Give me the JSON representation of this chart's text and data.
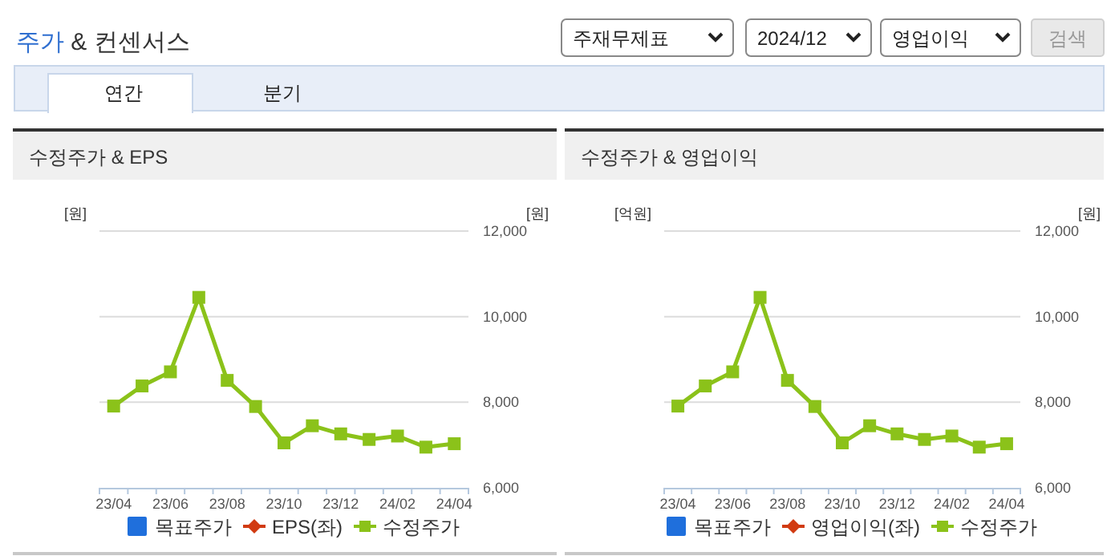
{
  "chart_data": [
    {
      "type": "line",
      "title": "수정주가 & EPS",
      "ylabel": "[원]",
      "y2label": "[원]",
      "annotations": [
        "주가 & 컨센서스",
        "주재무제표",
        "2024/12",
        "영업이익",
        "검색",
        "연간",
        "분기"
      ],
      "categories": [
        "23/04",
        null,
        "23/06",
        null,
        "23/08",
        null,
        "23/10",
        null,
        "23/12",
        null,
        "24/02",
        null,
        "24/04"
      ],
      "series": [
        {
          "name": "목표주가",
          "type": "bar",
          "color": "#1f6fdc",
          "values": [
            null,
            null,
            null,
            null,
            null,
            null,
            null,
            null,
            null,
            null,
            null,
            null,
            null
          ]
        },
        {
          "name": "EPS(좌)",
          "marker": "diamond",
          "color": "#d13b12",
          "values": [
            null,
            null,
            null,
            null,
            null,
            null,
            null,
            null,
            null,
            null,
            null,
            null,
            null
          ]
        },
        {
          "name": "수정주가",
          "axis": "y2",
          "color": "#8bc21a",
          "values": [
            7910,
            8380,
            8710,
            10450,
            8510,
            7900,
            7050,
            7450,
            7260,
            7130,
            7210,
            6950,
            7030
          ]
        }
      ],
      "y2lim": [
        6000,
        12000
      ],
      "y2ticks": [
        {
          "value": 6000,
          "label": "6,000"
        },
        {
          "value": 8000,
          "label": "8,000"
        },
        {
          "value": 10000,
          "label": "10,000"
        },
        {
          "value": 12000,
          "label": "12,000"
        }
      ],
      "grid": "y",
      "legend": "bottom",
      "marker": "square",
      "line_style": "solid"
    },
    {
      "type": "line",
      "title": "수정주가 & 영업이익",
      "ylabel": "[억원]",
      "y2label": "[원]",
      "categories": [
        "23/04",
        null,
        "23/06",
        null,
        "23/08",
        null,
        "23/10",
        null,
        "23/12",
        null,
        "24/02",
        null,
        "24/04"
      ],
      "series": [
        {
          "name": "목표주가",
          "type": "bar",
          "color": "#1f6fdc",
          "values": [
            null,
            null,
            null,
            null,
            null,
            null,
            null,
            null,
            null,
            null,
            null,
            null,
            null
          ]
        },
        {
          "name": "영업이익(좌)",
          "marker": "diamond",
          "color": "#d13b12",
          "values": [
            null,
            null,
            null,
            null,
            null,
            null,
            null,
            null,
            null,
            null,
            null,
            null,
            null
          ]
        },
        {
          "name": "수정주가",
          "axis": "y2",
          "color": "#8bc21a",
          "values": [
            7910,
            8380,
            8710,
            10450,
            8510,
            7900,
            7050,
            7450,
            7260,
            7130,
            7210,
            6950,
            7030
          ]
        }
      ],
      "y2lim": [
        6000,
        12000
      ],
      "y2ticks": [
        {
          "value": 6000,
          "label": "6,000"
        },
        {
          "value": 8000,
          "label": "8,000"
        },
        {
          "value": 10000,
          "label": "10,000"
        },
        {
          "value": 12000,
          "label": "12,000"
        }
      ],
      "grid": "y",
      "legend": "bottom",
      "marker": "square",
      "line_style": "solid"
    }
  ]
}
